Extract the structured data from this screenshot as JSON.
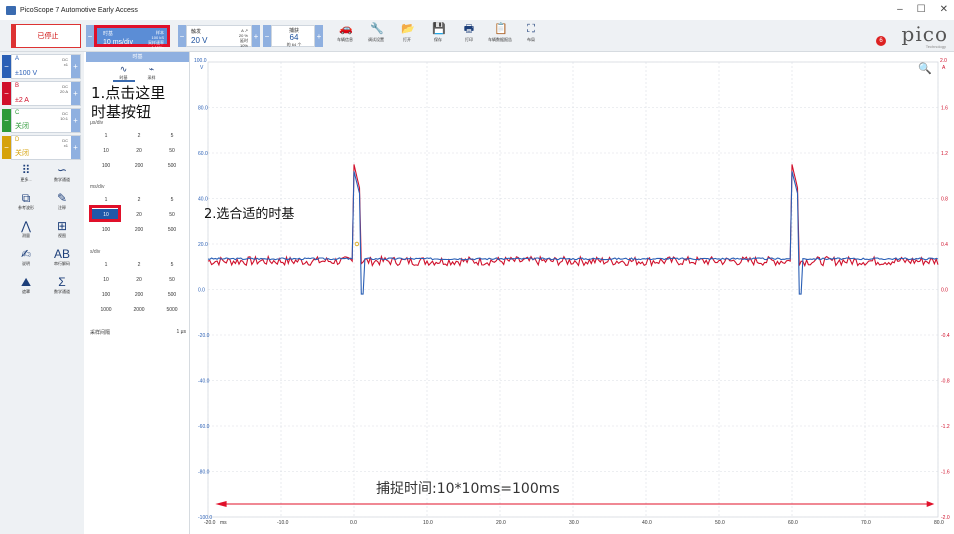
{
  "window": {
    "title": "PicoScope 7 Automotive Early Access",
    "controls": [
      "–",
      "☐",
      "✕"
    ]
  },
  "toolbar": {
    "stop_label": "已停止",
    "timebase": {
      "caption": "时基",
      "value": "10 ms/div",
      "right_lines": [
        "样本",
        "100 kS",
        "采样速率",
        "1 MS/s"
      ]
    },
    "trigger": {
      "caption": "触发",
      "value": "20 V",
      "right_lines": [
        "A ↗",
        "20 %",
        "延时",
        "10%"
      ]
    },
    "capture": {
      "caption": "捕获",
      "value": "64",
      "sub": "的 64 个"
    },
    "tools": [
      {
        "icon": "car-icon",
        "glyph": "🚗",
        "label": "车辆信息"
      },
      {
        "icon": "wrench-icon",
        "glyph": "🔧",
        "label": "调试设置"
      },
      {
        "icon": "folder-open-icon",
        "glyph": "📂",
        "label": "打开"
      },
      {
        "icon": "save-icon",
        "glyph": "💾",
        "label": "保存"
      },
      {
        "icon": "print-icon",
        "glyph": "🖶",
        "label": "打印"
      },
      {
        "icon": "report-icon",
        "glyph": "📋",
        "label": "车辆数据报告"
      },
      {
        "icon": "layout-icon",
        "glyph": "⛶",
        "label": "布局"
      }
    ],
    "logo": "pico",
    "logo_sub": "Technology",
    "notification_count": "6"
  },
  "channels": [
    {
      "name": "A",
      "value": "±100 V",
      "coupling": [
        "DC",
        "x1"
      ],
      "color": "#2a5fb5"
    },
    {
      "name": "B",
      "value": "±2 A",
      "coupling": [
        "DC",
        "20 A"
      ],
      "color": "#d0102b"
    },
    {
      "name": "C",
      "value": "关闭",
      "coupling": [
        "DC",
        "10:1"
      ],
      "color": "#2e9a3a"
    },
    {
      "name": "D",
      "value": "关闭",
      "coupling": [
        "DC",
        "x1"
      ],
      "color": "#d6a20a"
    }
  ],
  "left_tools": [
    {
      "icon": "grid-apps-icon",
      "glyph": "⠿",
      "label": "更多..."
    },
    {
      "icon": "math-channel-icon",
      "glyph": "∽",
      "label": "数学通道"
    },
    {
      "icon": "reference-waveform-icon",
      "glyph": "⧉",
      "label": "参考波形"
    },
    {
      "icon": "pen-icon",
      "glyph": "✎",
      "label": "注释"
    },
    {
      "icon": "measure-icon",
      "glyph": "⋀",
      "label": "测量"
    },
    {
      "icon": "views-icon",
      "glyph": "⊞",
      "label": "视图"
    },
    {
      "icon": "notes-icon",
      "glyph": "✍",
      "label": "说明"
    },
    {
      "icon": "serial-decode-icon",
      "glyph": "AB",
      "label": "串行解码"
    },
    {
      "icon": "mask-icon",
      "glyph": "⛰",
      "label": "遮罩"
    },
    {
      "icon": "sum-icon",
      "glyph": "Σ",
      "label": "数学通道"
    }
  ],
  "panel": {
    "header": "时基",
    "tabs": [
      {
        "icon": "timebase-tab-icon",
        "glyph": "∿",
        "label": "时基"
      },
      {
        "icon": "probe-tab-icon",
        "glyph": "⌁",
        "label": "采样"
      }
    ],
    "sections": [
      {
        "unit": "μs/div",
        "values": [
          "1",
          "2",
          "5",
          "10",
          "20",
          "50",
          "100",
          "200",
          "500"
        ]
      },
      {
        "unit": "ms/div",
        "values": [
          "1",
          "2",
          "5",
          "10",
          "20",
          "50",
          "100",
          "200",
          "500"
        ]
      },
      {
        "unit": "s/div",
        "values": [
          "1",
          "2",
          "5",
          "10",
          "20",
          "50",
          "100",
          "200",
          "500",
          "1000",
          "2000",
          "5000"
        ]
      }
    ],
    "selected": "10",
    "sample_label": "采样间隔",
    "sample_value": "1 μs"
  },
  "annotations": {
    "step1": "1.点击这里\n时基按钮",
    "step2": "2.选合适的时基",
    "capture_time": "捕捉时间:10*10ms=100ms"
  },
  "chart_data": {
    "type": "line",
    "x_axis": {
      "unit": "ms",
      "ticks": [
        "-20.0",
        "-10.0",
        "0.0",
        "10.0",
        "20.0",
        "30.0",
        "40.0",
        "50.0",
        "60.0",
        "70.0",
        "80.0"
      ],
      "range": [
        -20,
        80
      ]
    },
    "left_axis": {
      "label": "V",
      "ticks": [
        "80.0",
        "60.0",
        "40.0",
        "20.0",
        "0.0",
        "-20.0",
        "-40.0",
        "-60.0",
        "-80.0",
        "-100.0"
      ],
      "range": [
        -100,
        100
      ]
    },
    "right_axis": {
      "label": "A",
      "ticks": [
        "1.6",
        "1.2",
        "0.8",
        "0.4",
        "0.0",
        "-0.4",
        "-0.8",
        "-1.2",
        "-1.6",
        "-2.0"
      ],
      "range": [
        -2,
        2
      ]
    },
    "series": [
      {
        "name": "A",
        "color": "#2a5fb5",
        "baseline": 13.5,
        "spikes": [
          {
            "t": 0,
            "peak": 52,
            "dip": -2
          },
          {
            "t": 60,
            "peak": 52,
            "dip": -2
          }
        ]
      },
      {
        "name": "B",
        "color": "#d0102b",
        "baseline": 0.25,
        "spikes": [
          {
            "t": 0,
            "peak": 1.1
          },
          {
            "t": 60,
            "peak": 1.1
          }
        ]
      }
    ],
    "top_axis_tag_left": "100.0",
    "top_axis_tag_right": "2.0"
  }
}
